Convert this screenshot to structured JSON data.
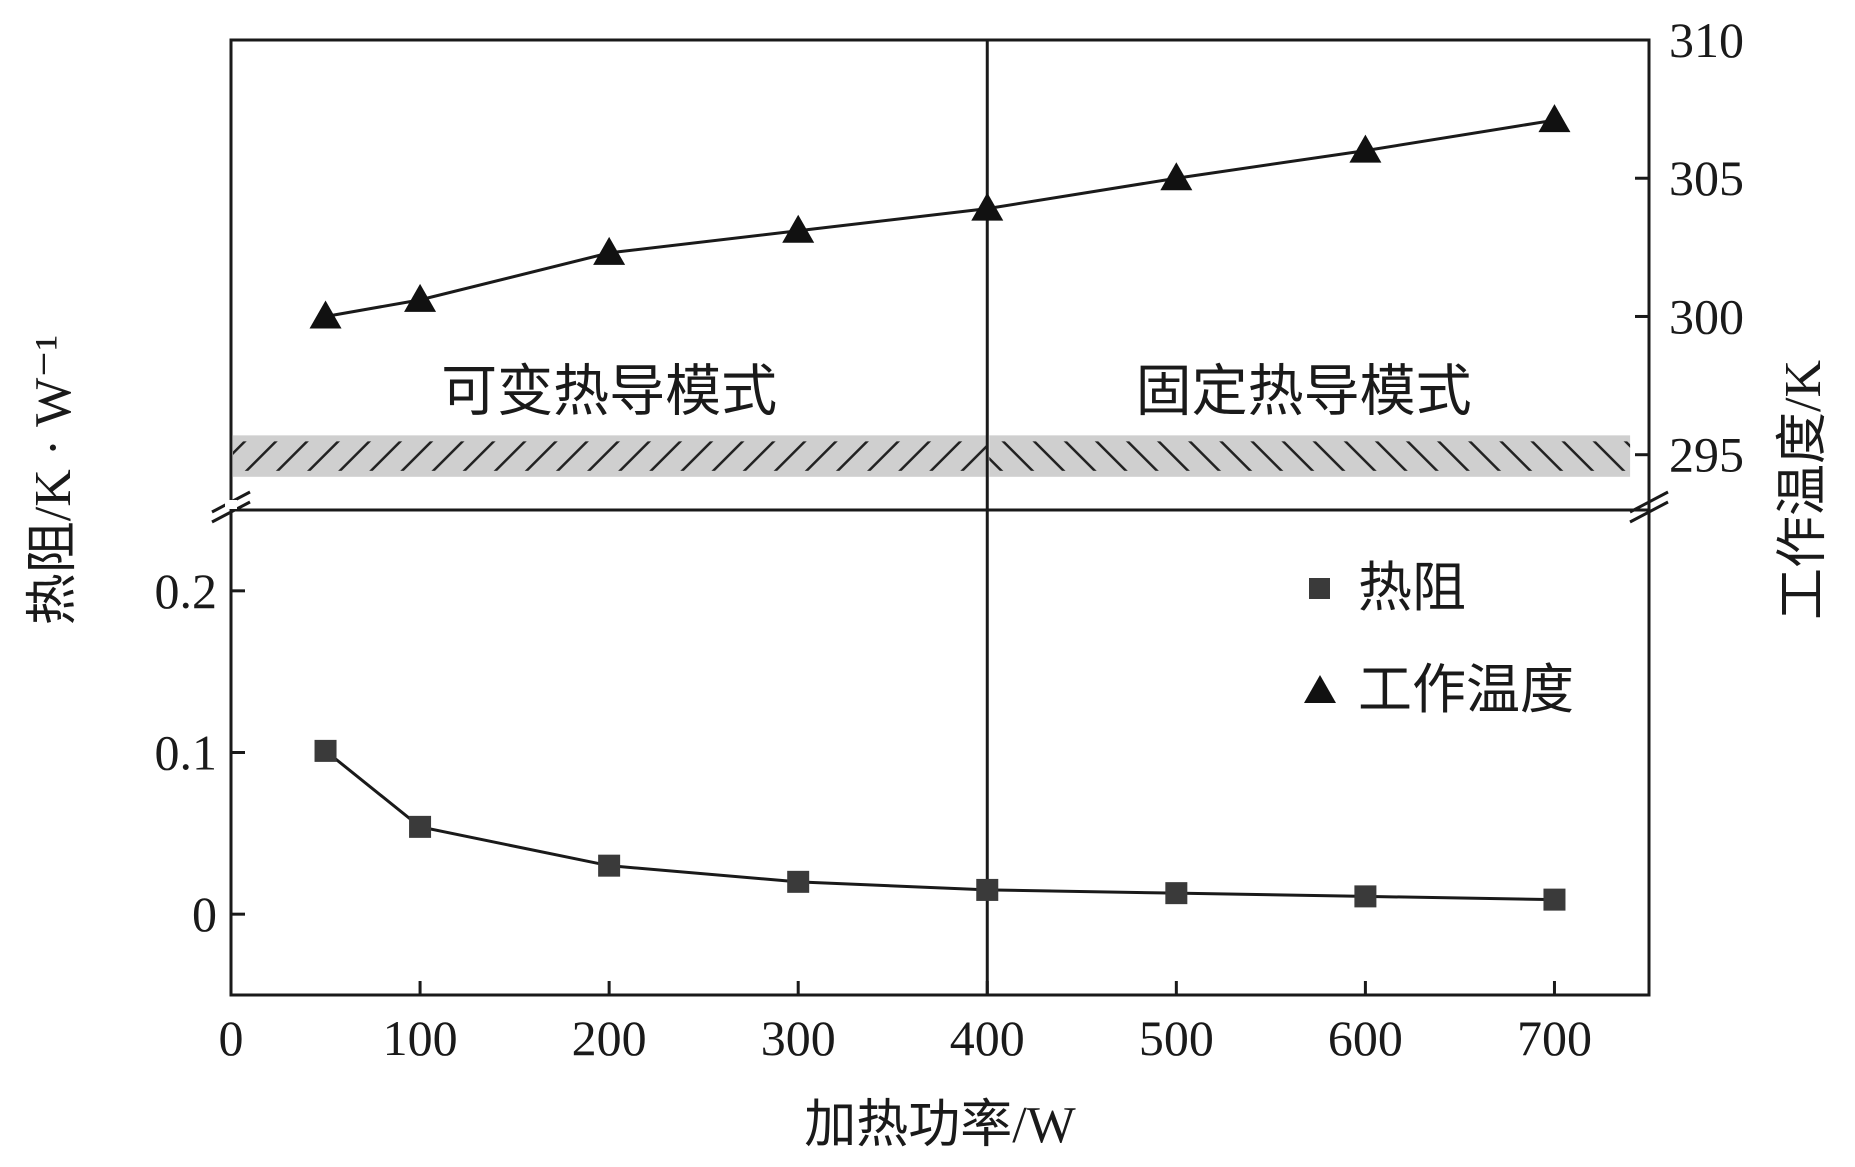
{
  "chart_data": {
    "type": "line",
    "xlabel": "加热功率/W",
    "ylabel_left": "热阻/K · W⁻¹",
    "ylabel_right": "工作温度/K",
    "xlim": [
      0,
      750
    ],
    "x_ticks": [
      "0",
      "100",
      "200",
      "300",
      "400",
      "500",
      "600",
      "700"
    ],
    "x_tick_values": [
      0,
      100,
      200,
      300,
      400,
      500,
      600,
      700
    ],
    "left_axis": {
      "ylim": [
        -0.05,
        0.25
      ],
      "ticks": [
        "0",
        "0.1",
        "0.2"
      ],
      "tick_values": [
        0,
        0.1,
        0.2
      ]
    },
    "right_axis": {
      "ylim": [
        293,
        310
      ],
      "ticks": [
        "295",
        "300",
        "305",
        "310"
      ],
      "tick_values": [
        295,
        300,
        305,
        310
      ]
    },
    "axis_break": true,
    "divider_x": 400,
    "regions": [
      {
        "label": "可变热导模式",
        "x_range": [
          0,
          400
        ],
        "hatch": "forward"
      },
      {
        "label": "固定热导模式",
        "x_range": [
          400,
          740
        ],
        "hatch": "backward"
      }
    ],
    "band_y_range": [
      294.2,
      295.7
    ],
    "series": [
      {
        "name": "热阻",
        "axis": "left",
        "marker": "square",
        "x": [
          50,
          100,
          200,
          300,
          400,
          500,
          600,
          700
        ],
        "values": [
          0.101,
          0.054,
          0.03,
          0.02,
          0.015,
          0.013,
          0.011,
          0.009
        ]
      },
      {
        "name": "工作温度",
        "axis": "right",
        "marker": "triangle",
        "x": [
          50,
          100,
          200,
          300,
          400,
          500,
          600,
          700
        ],
        "values": [
          300.0,
          300.6,
          302.3,
          303.1,
          303.9,
          305.0,
          306.0,
          307.1
        ]
      }
    ],
    "legend": {
      "position": "right",
      "entries": [
        "热阻",
        "工作温度"
      ]
    },
    "colors": {
      "axis": "#1a1a1a",
      "series_square": "#3a3a3a",
      "series_triangle": "#111111",
      "band": "#cfcfcf",
      "hatch": "#222222"
    }
  }
}
